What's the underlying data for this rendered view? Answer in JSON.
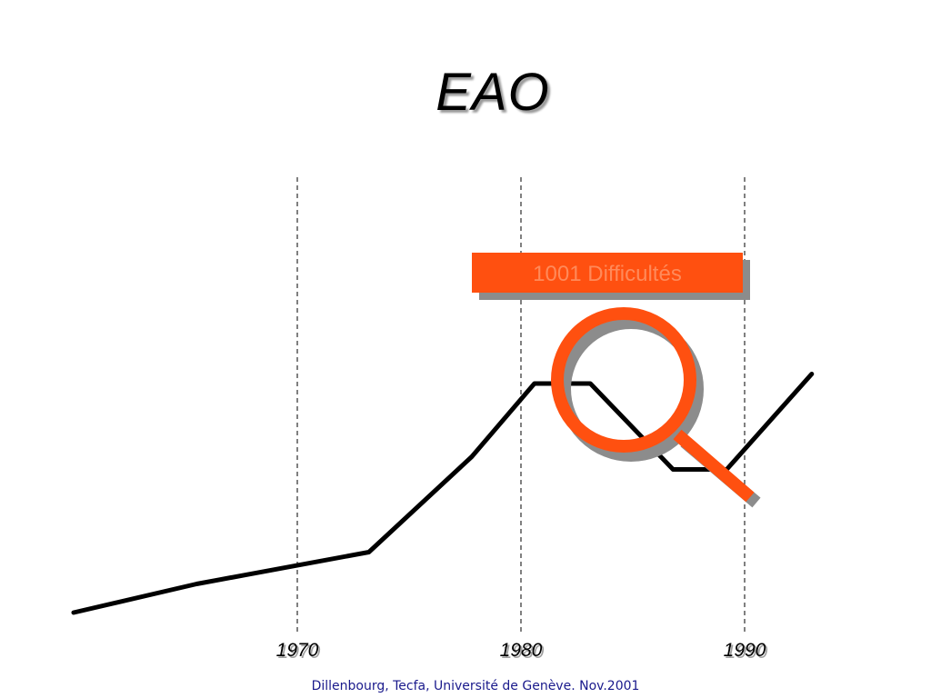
{
  "slide": {
    "title": "EAO",
    "footer": "Dillenbourg, Tecfa, Université de Genève. Nov.2001"
  },
  "callout": {
    "label": "1001 Difficultés"
  },
  "colors": {
    "accent": "#ff5010",
    "shadow": "#8c8c8c",
    "line": "#000000",
    "footer_text": "#1a1a8c"
  },
  "icons": {
    "magnifier": "magnifying-glass-icon"
  },
  "chart_data": {
    "type": "line",
    "title": "EAO",
    "xlabel": "",
    "ylabel": "",
    "xlim": [
      1959.5,
      1993.5
    ],
    "ylim": [
      0,
      100
    ],
    "grid": false,
    "reference_lines": [
      1970,
      1980,
      1990
    ],
    "x_ticks": [
      "1970",
      "1980",
      "1990"
    ],
    "series": [
      {
        "x": [
          1960,
          1965.5,
          1973.2,
          1977.8,
          1980.6,
          1983.1,
          1986.8,
          1989.2,
          1993
        ],
        "y": [
          6,
          15,
          25,
          55,
          78,
          78,
          51,
          51,
          81
        ]
      }
    ]
  }
}
